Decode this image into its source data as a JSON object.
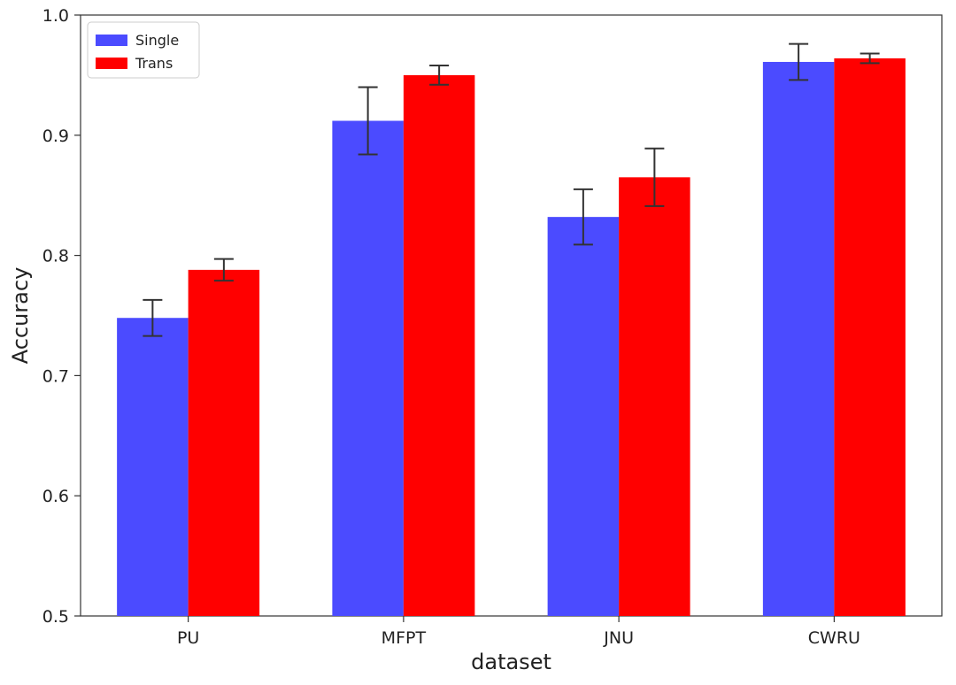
{
  "chart_data": {
    "type": "bar",
    "title": "",
    "xlabel": "dataset",
    "ylabel": "Accuracy",
    "ylim": [
      0.5,
      1.0
    ],
    "yticks": [
      0.5,
      0.6,
      0.7,
      0.8,
      0.9,
      1.0
    ],
    "ytick_labels": [
      "0.5",
      "0.6",
      "0.7",
      "0.8",
      "0.9",
      "1.0"
    ],
    "categories": [
      "PU",
      "MFPT",
      "JNU",
      "CWRU"
    ],
    "series": [
      {
        "name": "Single",
        "color": "#4b4bff",
        "values": [
          0.748,
          0.912,
          0.832,
          0.961
        ],
        "errors": [
          0.015,
          0.028,
          0.023,
          0.015
        ]
      },
      {
        "name": "Trans",
        "color": "#ff0000",
        "values": [
          0.788,
          0.95,
          0.865,
          0.964
        ],
        "errors": [
          0.009,
          0.008,
          0.024,
          0.004
        ]
      }
    ],
    "legend": {
      "position": "top-left"
    },
    "grid": false,
    "error_bar_color": "#333333"
  }
}
